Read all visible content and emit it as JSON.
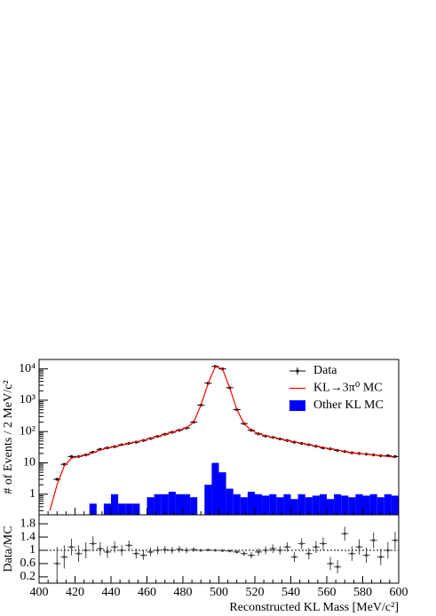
{
  "chart_data": [
    {
      "type": "bar",
      "ylabel": "# of Events / 2 MeV/c²",
      "x": [
        402,
        406,
        410,
        414,
        418,
        422,
        426,
        430,
        434,
        438,
        442,
        446,
        450,
        454,
        458,
        462,
        466,
        470,
        474,
        478,
        482,
        486,
        490,
        494,
        498,
        502,
        506,
        510,
        514,
        518,
        522,
        526,
        530,
        534,
        538,
        542,
        546,
        550,
        554,
        558,
        562,
        566,
        570,
        574,
        578,
        582,
        586,
        590,
        594,
        598
      ],
      "xlim": [
        400,
        600
      ],
      "xticks": [
        400,
        420,
        440,
        460,
        480,
        500,
        520,
        540,
        560,
        580,
        600
      ],
      "ylim": [
        0.22,
        20000
      ],
      "log_y": true,
      "yticks": [
        1,
        10,
        {
          "value": 100,
          "label": "10²"
        },
        {
          "value": 1000,
          "label": "10³"
        },
        {
          "value": 10000,
          "label": "10⁴"
        }
      ],
      "legend": "upper right",
      "series": [
        {
          "name": "Data",
          "color": "#000000",
          "style": "points",
          "values": [
            null,
            null,
            3,
            9,
            16,
            16,
            18,
            22,
            27,
            30,
            33,
            38,
            42,
            46,
            52,
            60,
            70,
            82,
            95,
            110,
            130,
            200,
            700,
            3500,
            12000,
            10000,
            2500,
            500,
            180,
            110,
            85,
            72,
            65,
            58,
            52,
            46,
            42,
            38,
            34,
            30,
            28,
            25,
            23,
            21,
            20,
            19,
            18,
            17,
            17,
            16
          ]
        },
        {
          "name": "KL→3π⁰ MC",
          "color": "#ff0000",
          "style": "line",
          "values": [
            null,
            0.3,
            2,
            8,
            14,
            16,
            18,
            21,
            26,
            30,
            33,
            37,
            42,
            47,
            53,
            60,
            70,
            82,
            95,
            110,
            132,
            200,
            700,
            3400,
            12000,
            10000,
            2500,
            500,
            180,
            110,
            85,
            73,
            65,
            58,
            52,
            47,
            42,
            38,
            34,
            31,
            28,
            26,
            23,
            21,
            20,
            19,
            18,
            17,
            16,
            15
          ]
        },
        {
          "name": "Other KL MC",
          "color": "#0000ff",
          "style": "bar",
          "values": [
            0,
            0,
            0,
            0,
            0,
            0,
            0,
            0.5,
            0,
            0.5,
            1,
            0.5,
            0.5,
            0.5,
            0,
            0.8,
            1,
            1,
            1.2,
            1,
            1,
            0.8,
            0,
            2,
            10,
            5,
            1.5,
            1,
            0.8,
            1.2,
            1,
            0.9,
            1,
            0.8,
            1,
            0.7,
            1,
            0.8,
            0.9,
            1,
            0.7,
            1,
            0.9,
            0.8,
            1,
            0.9,
            1,
            0.8,
            1,
            0.9
          ]
        }
      ]
    },
    {
      "type": "scatter",
      "ylabel": "Data/MC",
      "xlabel": "Reconstructed KL Mass [MeV/c²]",
      "x": [
        402,
        406,
        410,
        414,
        418,
        422,
        426,
        430,
        434,
        438,
        442,
        446,
        450,
        454,
        458,
        462,
        466,
        470,
        474,
        478,
        482,
        486,
        490,
        494,
        498,
        502,
        506,
        510,
        514,
        518,
        522,
        526,
        530,
        534,
        538,
        542,
        546,
        550,
        554,
        558,
        562,
        566,
        570,
        574,
        578,
        582,
        586,
        590,
        594,
        598
      ],
      "xlim": [
        400,
        600
      ],
      "xticks": [
        400,
        420,
        440,
        460,
        480,
        500,
        520,
        540,
        560,
        580,
        600
      ],
      "ylim": [
        0.01,
        2.07
      ],
      "yticks": [
        0.2,
        0.6,
        1,
        1.4,
        1.8
      ],
      "hline": 1,
      "color": "#444444",
      "values": [
        null,
        null,
        0.6,
        0.8,
        1.1,
        0.9,
        1.0,
        1.2,
        1.05,
        0.95,
        1.1,
        1.0,
        1.15,
        0.9,
        0.85,
        0.95,
        1.0,
        1.02,
        1.0,
        1.03,
        1.0,
        1.02,
        1.0,
        1.01,
        1.0,
        0.99,
        0.98,
        0.95,
        0.9,
        0.85,
        0.95,
        1.0,
        1.05,
        1.0,
        1.1,
        0.8,
        1.2,
        0.9,
        1.1,
        1.2,
        0.6,
        0.5,
        1.5,
        0.9,
        1.1,
        0.85,
        1.3,
        0.8,
        1.0,
        1.3
      ],
      "errors": [
        null,
        null,
        0.5,
        0.35,
        0.25,
        0.25,
        0.24,
        0.22,
        0.2,
        0.18,
        0.17,
        0.16,
        0.15,
        0.15,
        0.14,
        0.13,
        0.12,
        0.11,
        0.1,
        0.1,
        0.09,
        0.07,
        0.04,
        0.02,
        0.01,
        0.01,
        0.02,
        0.05,
        0.07,
        0.1,
        0.11,
        0.12,
        0.13,
        0.13,
        0.14,
        0.15,
        0.16,
        0.17,
        0.18,
        0.19,
        0.2,
        0.2,
        0.21,
        0.22,
        0.23,
        0.23,
        0.24,
        0.25,
        0.25,
        0.26
      ]
    }
  ]
}
